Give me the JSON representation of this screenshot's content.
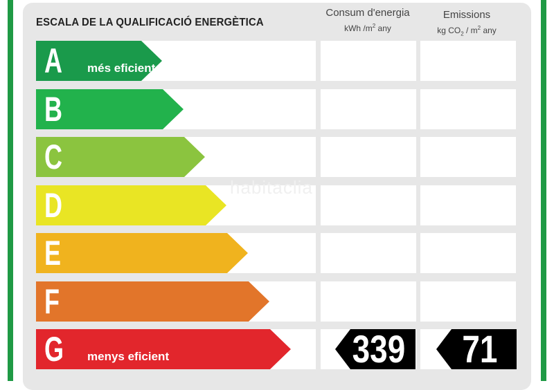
{
  "title": "ESCALA DE LA QUALIFICACIÓ ENERGÈTICA",
  "columns": {
    "consumption": {
      "title": "Consum d'energia",
      "unit_prefix": "kWh /m",
      "unit_exp": "2",
      "unit_suffix": " any"
    },
    "emissions": {
      "title": "Emissions",
      "unit_prefix": "kg CO",
      "unit_sub": "2",
      "unit_mid": " / m",
      "unit_exp": "2",
      "unit_suffix": " any"
    }
  },
  "ratings": [
    {
      "letter": "A",
      "caption": "més eficient",
      "color": "#1a9a4b"
    },
    {
      "letter": "B",
      "caption": "",
      "color": "#22b24c"
    },
    {
      "letter": "C",
      "caption": "",
      "color": "#8bc43f"
    },
    {
      "letter": "D",
      "caption": "",
      "color": "#e9e524"
    },
    {
      "letter": "E",
      "caption": "",
      "color": "#f0b31e"
    },
    {
      "letter": "F",
      "caption": "",
      "color": "#e2752a"
    },
    {
      "letter": "G",
      "caption": "menys eficient",
      "color": "#e2262c"
    }
  ],
  "result": {
    "rating": "G",
    "consumption_value": "339",
    "emissions_value": "71"
  },
  "watermark": "habitaclia",
  "colors": {
    "frame": "#1f9a45",
    "panel": "#e7e7e7",
    "marker": "#000000"
  }
}
